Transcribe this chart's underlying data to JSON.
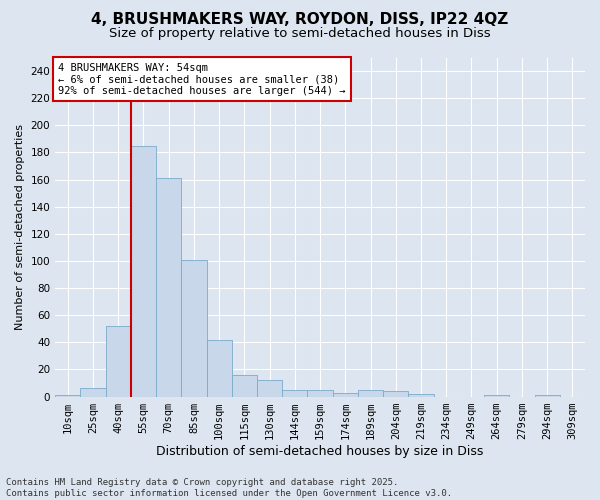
{
  "title": "4, BRUSHMAKERS WAY, ROYDON, DISS, IP22 4QZ",
  "subtitle": "Size of property relative to semi-detached houses in Diss",
  "xlabel": "Distribution of semi-detached houses by size in Diss",
  "ylabel": "Number of semi-detached properties",
  "categories": [
    "10sqm",
    "25sqm",
    "40sqm",
    "55sqm",
    "70sqm",
    "85sqm",
    "100sqm",
    "115sqm",
    "130sqm",
    "144sqm",
    "159sqm",
    "174sqm",
    "189sqm",
    "204sqm",
    "219sqm",
    "234sqm",
    "249sqm",
    "264sqm",
    "279sqm",
    "294sqm",
    "309sqm"
  ],
  "values": [
    1,
    6,
    52,
    185,
    161,
    101,
    42,
    16,
    12,
    5,
    5,
    3,
    5,
    4,
    2,
    0,
    0,
    1,
    0,
    1,
    0
  ],
  "bar_color": "#c8d8ea",
  "bar_edge_color": "#7aaac8",
  "vline_x_index": 3,
  "vline_color": "#cc0000",
  "annotation_text": "4 BRUSHMAKERS WAY: 54sqm\n← 6% of semi-detached houses are smaller (38)\n92% of semi-detached houses are larger (544) →",
  "annotation_box_color": "#ffffff",
  "annotation_box_edge_color": "#cc0000",
  "footer_text": "Contains HM Land Registry data © Crown copyright and database right 2025.\nContains public sector information licensed under the Open Government Licence v3.0.",
  "background_color": "#dde6f0",
  "plot_background_color": "#dde6f0",
  "grid_color": "#ffffff",
  "ylim": [
    0,
    250
  ],
  "yticks": [
    0,
    20,
    40,
    60,
    80,
    100,
    120,
    140,
    160,
    180,
    200,
    220,
    240
  ],
  "title_fontsize": 11,
  "subtitle_fontsize": 9.5,
  "xlabel_fontsize": 9,
  "ylabel_fontsize": 8,
  "tick_fontsize": 7.5,
  "annotation_fontsize": 7.5,
  "footer_fontsize": 6.5
}
